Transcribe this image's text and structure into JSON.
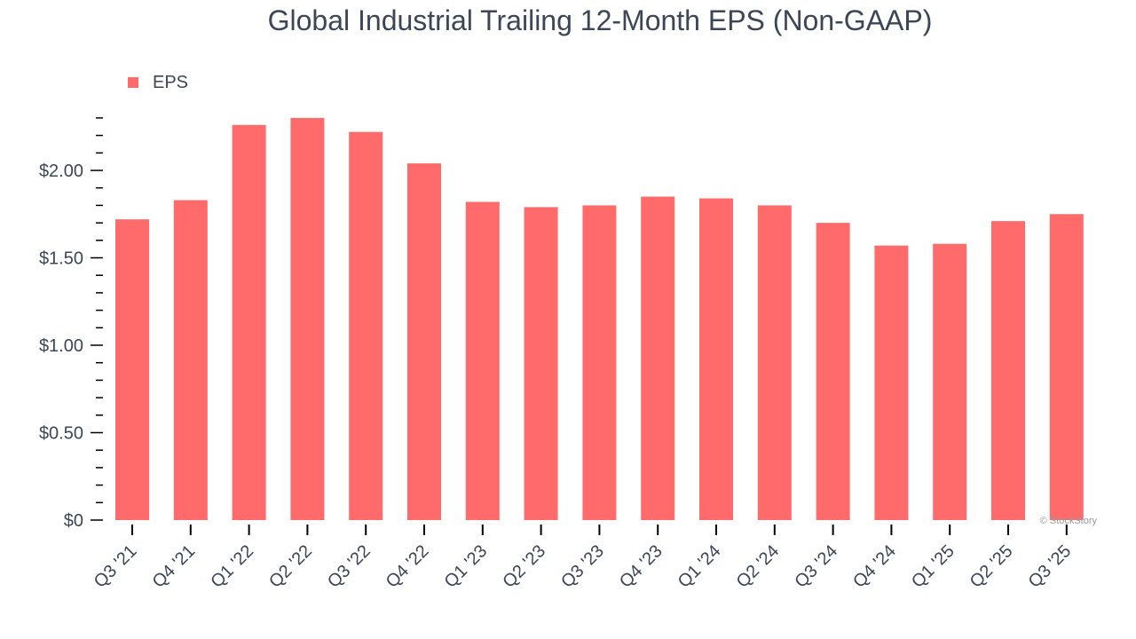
{
  "chart_data": {
    "type": "bar",
    "title": "Global Industrial Trailing 12-Month EPS (Non-GAAP)",
    "xlabel": "",
    "ylabel": "",
    "legend": {
      "entries": [
        "EPS"
      ],
      "placement": "top-left"
    },
    "categories": [
      "Q3 '21",
      "Q4 '21",
      "Q1 '22",
      "Q2 '22",
      "Q3 '22",
      "Q4 '22",
      "Q1 '23",
      "Q2 '23",
      "Q3 '23",
      "Q4 '23",
      "Q1 '24",
      "Q2 '24",
      "Q3 '24",
      "Q4 '24",
      "Q1 '25",
      "Q2 '25",
      "Q3 '25"
    ],
    "series": [
      {
        "name": "EPS",
        "color": "#ff6b6b",
        "values": [
          1.72,
          1.83,
          2.26,
          2.3,
          2.22,
          2.04,
          1.82,
          1.79,
          1.8,
          1.85,
          1.84,
          1.8,
          1.7,
          1.57,
          1.58,
          1.71,
          1.75
        ]
      }
    ],
    "yticks": [
      0,
      0.5,
      1.0,
      1.5,
      2.0
    ],
    "ytick_labels": [
      "$0",
      "$0.50",
      "$1.00",
      "$1.50",
      "$2.00"
    ],
    "ylim": [
      0,
      2.3
    ],
    "grid": false,
    "watermark": "© StockStory"
  }
}
